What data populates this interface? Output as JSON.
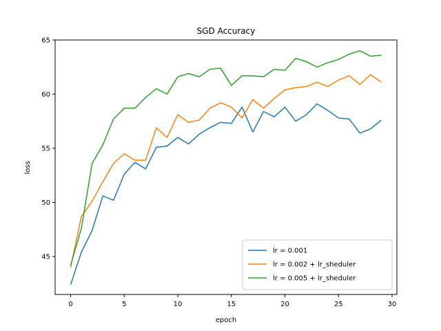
{
  "chart_data": {
    "type": "line",
    "title": "SGD Accuracy",
    "xlabel": "epoch",
    "ylabel": "loss",
    "xlim": [
      -1.45,
      30.45
    ],
    "ylim": [
      41.5,
      65
    ],
    "xticks": [
      0,
      5,
      10,
      15,
      20,
      25,
      30
    ],
    "yticks": [
      45,
      50,
      55,
      60,
      65
    ],
    "legend_position": "lower-right",
    "grid": false,
    "x": [
      0,
      1,
      2,
      3,
      4,
      5,
      6,
      7,
      8,
      9,
      10,
      11,
      12,
      13,
      14,
      15,
      16,
      17,
      18,
      19,
      20,
      21,
      22,
      23,
      24,
      25,
      26,
      27,
      28,
      29
    ],
    "series": [
      {
        "name": "lr = 0.001",
        "color": "#1f77b4",
        "values": [
          42.4,
          45.4,
          47.4,
          50.6,
          50.2,
          52.6,
          53.7,
          53.1,
          55.1,
          55.2,
          56.0,
          55.4,
          56.3,
          56.9,
          57.4,
          57.3,
          58.8,
          56.5,
          58.4,
          57.9,
          58.8,
          57.5,
          58.1,
          59.1,
          58.5,
          57.8,
          57.7,
          56.4,
          56.8,
          57.6
        ]
      },
      {
        "name": "lr = 0.002 + lr_sheduler",
        "color": "#ff7f0e",
        "values": [
          44.0,
          48.7,
          50.1,
          51.9,
          53.6,
          54.5,
          53.9,
          53.9,
          56.9,
          56.0,
          58.1,
          57.4,
          57.6,
          58.7,
          59.2,
          58.8,
          57.8,
          59.5,
          58.7,
          59.6,
          60.4,
          60.6,
          60.7,
          61.1,
          60.7,
          61.3,
          61.7,
          60.9,
          61.8,
          61.1
        ]
      },
      {
        "name": "lr = 0.005 + lr_sheduler",
        "color": "#2ca02c",
        "values": [
          44.2,
          47.6,
          53.6,
          55.3,
          57.7,
          58.7,
          58.7,
          59.7,
          60.5,
          60.0,
          61.6,
          61.9,
          61.6,
          62.3,
          62.4,
          60.8,
          61.7,
          61.7,
          61.6,
          62.3,
          62.2,
          63.3,
          63.0,
          62.5,
          62.9,
          63.2,
          63.7,
          64.0,
          63.5,
          63.6
        ]
      }
    ]
  }
}
